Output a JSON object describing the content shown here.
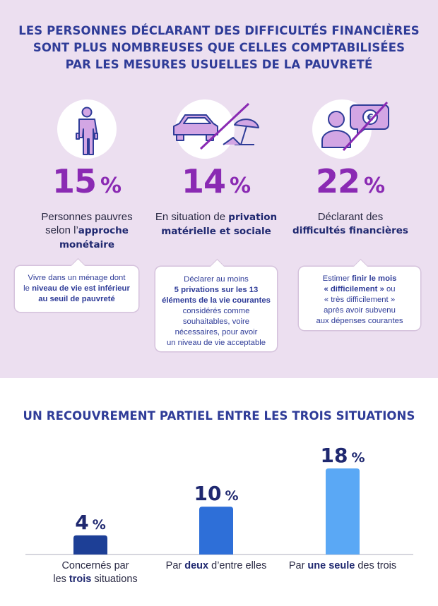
{
  "header": {
    "title_lines": [
      "LES PERSONNES DÉCLARANT DES DIFFICULTÉS FINANCIÈRES",
      "SONT PLUS NOMBREUSES QUE CELLES COMPTABILISÉES",
      "PAR LES MESURES USUELLES DE LA PAUVRETÉ"
    ]
  },
  "indicators": [
    {
      "value": "15",
      "unit": "%",
      "icon": "person-empty-pockets-icon",
      "label_parts": [
        [
          "Personnes pauvres",
          false
        ],
        [
          "selon l’",
          false
        ],
        [
          "approche",
          true
        ],
        [
          "monétaire",
          true
        ]
      ],
      "definition_parts": [
        [
          "Vivre dans un ménage dont",
          false
        ],
        [
          "le ",
          false
        ],
        [
          "niveau de vie est inférieur",
          true
        ],
        [
          "au seuil de pauvreté",
          true
        ]
      ]
    },
    {
      "value": "14",
      "unit": "%",
      "icon": "car-and-parasol-crossed-icon",
      "label_parts": [
        [
          "En situation de ",
          false
        ],
        [
          "privation",
          true
        ],
        [
          "matérielle et sociale",
          true
        ]
      ],
      "definition_parts": [
        [
          "Déclarer au moins",
          false
        ],
        [
          "5 privations sur les 13",
          true
        ],
        [
          "éléments de la vie courantes",
          true
        ],
        [
          "considérés comme",
          false
        ],
        [
          "souhaitables, voire",
          false
        ],
        [
          "nécessaires, pour avoir",
          false
        ],
        [
          "un niveau de vie acceptable",
          false
        ]
      ]
    },
    {
      "value": "22",
      "unit": "%",
      "icon": "person-euro-bubble-crossed-icon",
      "label_parts": [
        [
          "Déclarant des",
          false
        ],
        [
          "difficultés financières",
          true
        ]
      ],
      "definition_parts": [
        [
          "Estimer ",
          false
        ],
        [
          "finir le mois",
          true
        ],
        [
          "« difficilement »",
          true
        ],
        [
          " ou",
          false
        ],
        [
          "« très difficilement »",
          false
        ],
        [
          "après avoir subvenu",
          false
        ],
        [
          "aux dépenses courantes",
          false
        ]
      ]
    }
  ],
  "overlap": {
    "title": "UN RECOUVREMENT PARTIEL ENTRE LES TROIS SITUATIONS"
  },
  "chart_data": {
    "type": "bar",
    "title": "UN RECOUVREMENT PARTIEL ENTRE LES TROIS SITUATIONS",
    "categories": [
      "Concernés par les trois situations",
      "Par deux d’entre elles",
      "Par une seule des trois"
    ],
    "category_parts": [
      [
        [
          "Concernés par",
          false
        ],
        [
          "les ",
          false
        ],
        [
          "trois",
          true
        ],
        [
          " situations",
          false
        ]
      ],
      [
        [
          "Par ",
          false
        ],
        [
          "deux",
          true
        ],
        [
          " d’entre elles",
          false
        ]
      ],
      [
        [
          "Par ",
          false
        ],
        [
          "une seule",
          true
        ],
        [
          " des trois",
          false
        ]
      ]
    ],
    "values": [
      4,
      10,
      18
    ],
    "value_labels": [
      "4",
      "10",
      "18"
    ],
    "unit": "%",
    "colors": [
      "#1d3f96",
      "#2e6fd8",
      "#5aa8f5"
    ],
    "ylim": [
      0,
      18
    ],
    "grid": false,
    "legend": "none"
  },
  "colors": {
    "accent_purple": "#8a2ab3",
    "title_blue": "#2f3c98",
    "top_background": "#ecdff0"
  }
}
